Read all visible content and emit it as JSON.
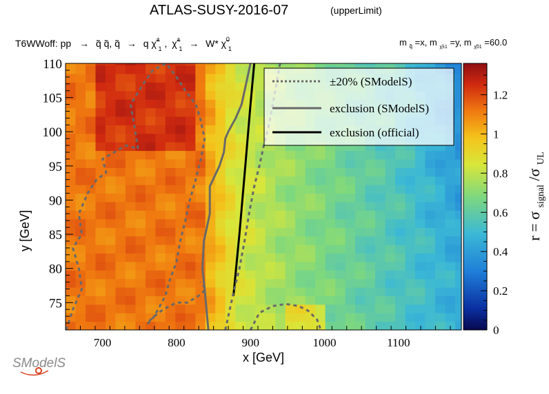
{
  "header": {
    "title": "ATLAS-SUSY-2016-07",
    "title_tag": "(upperLimit)"
  },
  "process": {
    "lead": "T6WWoff: pp",
    "arrow1": "→",
    "step1": "q̃ q̃, q̃",
    "arrow2": "→",
    "step2": "q χ̃",
    "pm1": "±",
    "sub1": "1",
    "sep": ",",
    "step3": "χ̃",
    "pm2": "±",
    "sub2": "1",
    "arrow3": "→",
    "step4": "W* χ̃",
    "zero": "0",
    "sub3": "1"
  },
  "mass_note": {
    "m1": "m",
    "m1_sub": "q̃",
    "m1_val": "=x, m",
    "m2_sub": "χ̃±1",
    "m2_val": "=y, m",
    "m3_sub": "χ̃01",
    "m3_val": "=60.0"
  },
  "logo": {
    "text": "SModelS"
  },
  "colorbar": {
    "label_r": "r = σ",
    "label_sub1": "signal",
    "label_slash": "/σ",
    "label_sub2": "UL",
    "range": [
      0,
      1.36
    ],
    "ticks": [
      "0",
      "0.2",
      "0.4",
      "0.6",
      "0.8",
      "1",
      "1.2"
    ]
  },
  "chart_data": {
    "type": "heatmap",
    "xlabel": "x [GeV]",
    "ylabel": "y [GeV]",
    "xlim": [
      650,
      1185
    ],
    "ylim": [
      71,
      110
    ],
    "xticks": [
      "700",
      "800",
      "900",
      "1000",
      "1100"
    ],
    "yticks": [
      "75",
      "80",
      "85",
      "90",
      "95",
      "100",
      "105",
      "110"
    ],
    "grid": false,
    "legend_position": "top-right",
    "legend": [
      {
        "label": "±20% (SModelS)",
        "style": "dotted",
        "color": "#696969"
      },
      {
        "label": "exclusion (SModelS)",
        "style": "solid",
        "color": "#696969"
      },
      {
        "label": "exclusion (official)",
        "style": "solid",
        "color": "#000000"
      }
    ],
    "series": [
      {
        "name": "exclusion (official)",
        "x": [
          877,
          885,
          893,
          900,
          905
        ],
        "y": [
          76,
          85,
          95,
          104,
          110
        ]
      },
      {
        "name": "exclusion (SModelS)",
        "x": [
          843,
          838,
          835,
          837,
          845,
          845,
          858,
          864,
          866,
          870,
          880,
          888,
          892,
          900
        ],
        "y": [
          71,
          77,
          80,
          84,
          88,
          92,
          95,
          97,
          99,
          100,
          102,
          104,
          106,
          110
        ]
      },
      {
        "name": "+20% (SModelS)",
        "x": [
          651,
          660,
          672,
          668,
          660,
          672,
          668,
          680,
          692,
          705,
          700,
          716,
          732,
          748,
          745,
          742,
          738,
          755,
          768,
          786,
          800,
          812,
          826,
          832,
          838,
          833,
          826,
          818,
          812,
          805,
          800,
          790,
          785,
          775,
          770,
          762,
          760,
          770,
          782,
          800,
          815,
          830,
          840,
          832
        ],
        "y": [
          71,
          74,
          77,
          80,
          83,
          85,
          88,
          91,
          93,
          94,
          96,
          97,
          98,
          97.5,
          99.5,
          101.5,
          104,
          107,
          109,
          110,
          108,
          106,
          104,
          102,
          99,
          96,
          93,
          90,
          87,
          84,
          81,
          78,
          76,
          74,
          73,
          72,
          72,
          73,
          74,
          75,
          75,
          76,
          77,
          78
        ]
      },
      {
        "name": "-20% (SModelS)",
        "x": [
          866,
          876,
          885,
          892,
          898,
          905,
          912,
          918,
          925,
          930,
          935,
          940
        ],
        "y": [
          71,
          76,
          80,
          84,
          88,
          92,
          95,
          98,
          101,
          104,
          107,
          110
        ]
      },
      {
        "name": "-20% (SModelS) island",
        "x": [
          900,
          912,
          930,
          948,
          965,
          978,
          990,
          995
        ],
        "y": [
          71,
          73.5,
          74.5,
          74.8,
          74.5,
          73.8,
          72.5,
          71
        ]
      }
    ]
  }
}
